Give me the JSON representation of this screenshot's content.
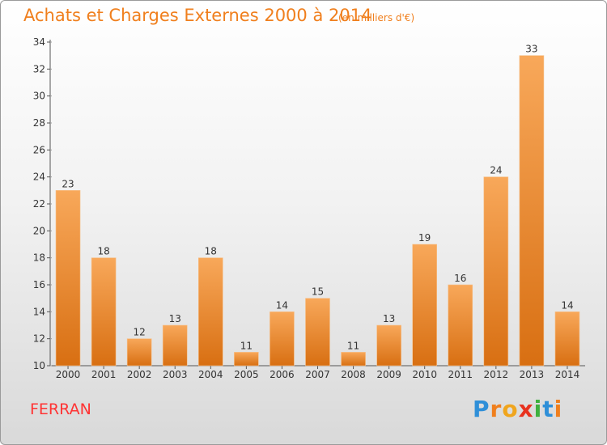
{
  "title": "Achats et Charges Externes 2000 à 2014",
  "unit_label": "(en milliers d'€)",
  "place": "FERRAN",
  "brand": {
    "letters": [
      "P",
      "r",
      "o",
      "x",
      "i",
      "t",
      "i"
    ],
    "colors": [
      "#2f8fd8",
      "#f07f1d",
      "#f0a51d",
      "#e8321f",
      "#3fb03f",
      "#2f8fd8",
      "#f07f1d"
    ]
  },
  "colors": {
    "bar_top": "#f8a85a",
    "bar_bottom": "#d86f12",
    "text": "#333333",
    "accent": "#f07f1d"
  },
  "chart_data": {
    "type": "bar",
    "title": "Achats et Charges Externes 2000 à 2014",
    "categories": [
      "2000",
      "2001",
      "2002",
      "2003",
      "2004",
      "2005",
      "2006",
      "2007",
      "2008",
      "2009",
      "2010",
      "2011",
      "2012",
      "2013",
      "2014"
    ],
    "values": [
      23,
      18,
      12,
      13,
      18,
      11,
      14,
      15,
      11,
      13,
      19,
      16,
      24,
      33,
      14
    ],
    "ylim": [
      10,
      34
    ],
    "yticks": [
      10,
      12,
      14,
      16,
      18,
      20,
      22,
      24,
      26,
      28,
      30,
      32,
      34
    ],
    "grid": false,
    "xlabel": "",
    "ylabel": ""
  }
}
